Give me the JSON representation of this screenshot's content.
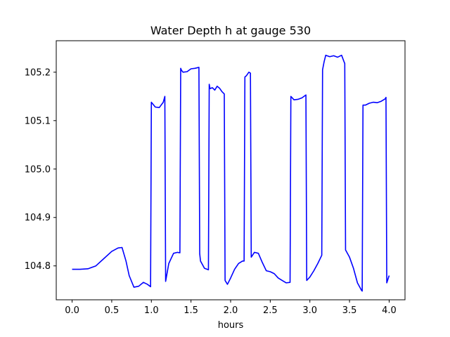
{
  "chart_data": {
    "type": "line",
    "title": "Water Depth h at gauge 530",
    "xlabel": "hours",
    "ylabel": "",
    "xlim": [
      -0.2,
      4.2
    ],
    "ylim": [
      104.73,
      105.265
    ],
    "xticks": [
      0.0,
      0.5,
      1.0,
      1.5,
      2.0,
      2.5,
      3.0,
      3.5,
      4.0
    ],
    "xtick_labels": [
      "0.0",
      "0.5",
      "1.0",
      "1.5",
      "2.0",
      "2.5",
      "3.0",
      "3.5",
      "4.0"
    ],
    "yticks": [
      104.8,
      104.9,
      105.0,
      105.1,
      105.2
    ],
    "ytick_labels": [
      "104.8",
      "104.9",
      "105.0",
      "105.1",
      "105.2"
    ],
    "grid": false,
    "series": [
      {
        "color": "#0000ff",
        "x": [
          0.0,
          0.1,
          0.2,
          0.3,
          0.4,
          0.5,
          0.58,
          0.63,
          0.68,
          0.72,
          0.78,
          0.84,
          0.9,
          0.95,
          0.99,
          1.0,
          1.05,
          1.1,
          1.15,
          1.17,
          1.18,
          1.22,
          1.28,
          1.33,
          1.36,
          1.37,
          1.38,
          1.4,
          1.45,
          1.5,
          1.55,
          1.6,
          1.61,
          1.62,
          1.67,
          1.72,
          1.73,
          1.74,
          1.77,
          1.8,
          1.83,
          1.86,
          1.89,
          1.92,
          1.93,
          1.96,
          2.0,
          2.05,
          2.1,
          2.15,
          2.17,
          2.18,
          2.2,
          2.23,
          2.25,
          2.26,
          2.3,
          2.35,
          2.4,
          2.45,
          2.5,
          2.55,
          2.6,
          2.65,
          2.7,
          2.75,
          2.76,
          2.8,
          2.85,
          2.9,
          2.95,
          2.96,
          3.0,
          3.05,
          3.1,
          3.15,
          3.16,
          3.18,
          3.2,
          3.25,
          3.3,
          3.35,
          3.4,
          3.43,
          3.44,
          3.45,
          3.5,
          3.55,
          3.6,
          3.65,
          3.66,
          3.67,
          3.7,
          3.75,
          3.8,
          3.85,
          3.9,
          3.95,
          3.96,
          3.97,
          4.0
        ],
        "y": [
          104.793,
          104.793,
          104.794,
          104.8,
          104.815,
          104.83,
          104.837,
          104.838,
          104.81,
          104.78,
          104.756,
          104.758,
          104.766,
          104.762,
          104.757,
          105.138,
          105.128,
          105.127,
          105.138,
          105.15,
          104.768,
          104.805,
          104.826,
          104.828,
          104.827,
          105.208,
          105.204,
          105.2,
          105.201,
          105.207,
          105.208,
          105.21,
          104.825,
          104.81,
          104.795,
          104.792,
          105.175,
          105.166,
          105.168,
          105.163,
          105.171,
          105.167,
          105.16,
          105.155,
          104.77,
          104.762,
          104.775,
          104.793,
          104.805,
          104.81,
          104.81,
          105.19,
          105.193,
          105.2,
          105.198,
          104.818,
          104.828,
          104.826,
          104.807,
          104.79,
          104.788,
          104.784,
          104.775,
          104.77,
          104.765,
          104.766,
          105.15,
          105.143,
          105.144,
          105.147,
          105.153,
          104.77,
          104.777,
          104.79,
          104.805,
          104.822,
          105.205,
          105.222,
          105.235,
          105.232,
          105.234,
          105.231,
          105.235,
          105.222,
          105.218,
          104.833,
          104.818,
          104.795,
          104.765,
          104.75,
          104.748,
          105.132,
          105.132,
          105.136,
          105.138,
          105.137,
          105.14,
          105.145,
          105.148,
          104.765,
          104.78
        ]
      }
    ]
  }
}
